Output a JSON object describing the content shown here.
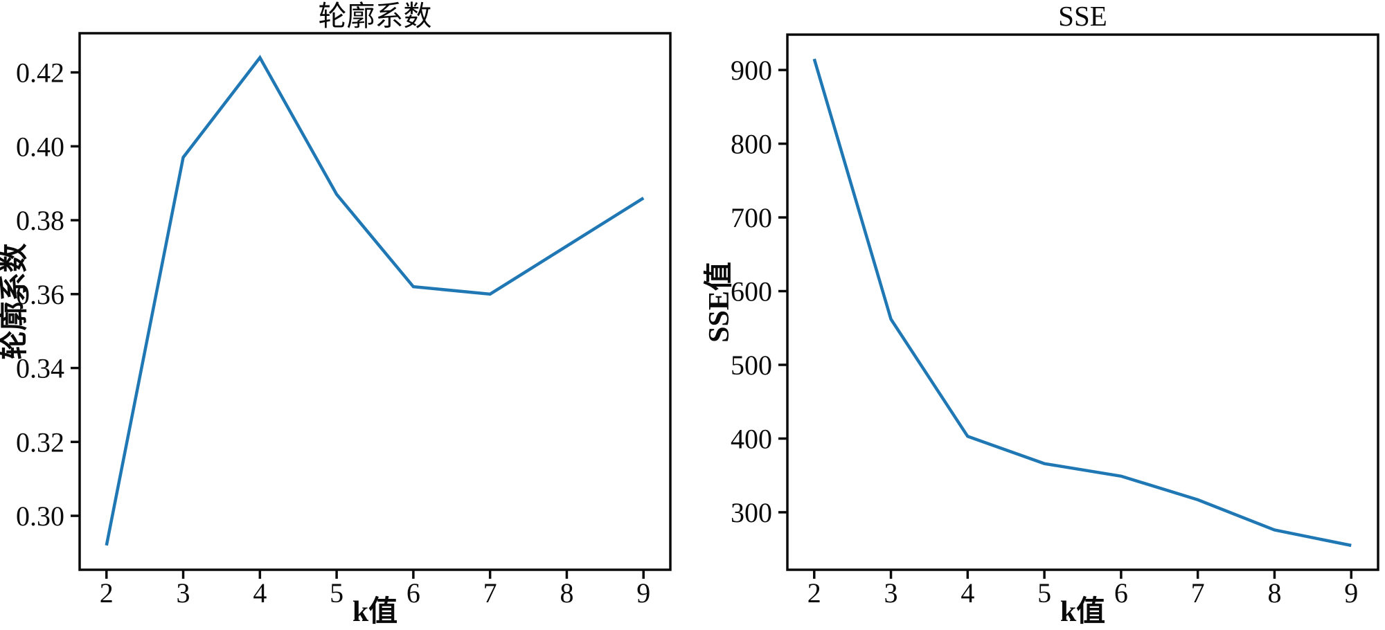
{
  "figure": {
    "background": "#ffffff",
    "text_color": "#0a0a0a"
  },
  "chart_data": [
    {
      "type": "line",
      "title": "轮廓系数",
      "xlabel": "k值",
      "ylabel": "轮廓系数",
      "x": [
        2,
        3,
        4,
        5,
        6,
        7,
        8,
        9
      ],
      "values": [
        0.292,
        0.397,
        0.424,
        0.387,
        0.362,
        0.36,
        0.373,
        0.386
      ],
      "xlim": [
        1.65,
        9.35
      ],
      "ylim": [
        0.2854,
        0.4306
      ],
      "xtick_labels": [
        "2",
        "3",
        "4",
        "5",
        "6",
        "7",
        "8",
        "9"
      ],
      "xticks": [
        2,
        3,
        4,
        5,
        6,
        7,
        8,
        9
      ],
      "ytick_labels": [
        "0.30",
        "0.32",
        "0.34",
        "0.36",
        "0.38",
        "0.40",
        "0.42"
      ],
      "yticks": [
        0.3,
        0.32,
        0.34,
        0.36,
        0.38,
        0.4,
        0.42
      ],
      "line_color": "#1f77b4",
      "grid": false,
      "legend": null
    },
    {
      "type": "line",
      "title": "SSE",
      "xlabel": "k值",
      "ylabel": "SSE值",
      "x": [
        2,
        3,
        4,
        5,
        6,
        7,
        8,
        9
      ],
      "values": [
        915,
        562,
        403,
        366,
        349,
        317,
        276,
        255
      ],
      "xlim": [
        1.65,
        9.35
      ],
      "ylim": [
        222,
        948
      ],
      "xtick_labels": [
        "2",
        "3",
        "4",
        "5",
        "6",
        "7",
        "8",
        "9"
      ],
      "xticks": [
        2,
        3,
        4,
        5,
        6,
        7,
        8,
        9
      ],
      "ytick_labels": [
        "300",
        "400",
        "500",
        "600",
        "700",
        "800",
        "900"
      ],
      "yticks": [
        300,
        400,
        500,
        600,
        700,
        800,
        900
      ],
      "line_color": "#1f77b4",
      "grid": false,
      "legend": null
    }
  ]
}
